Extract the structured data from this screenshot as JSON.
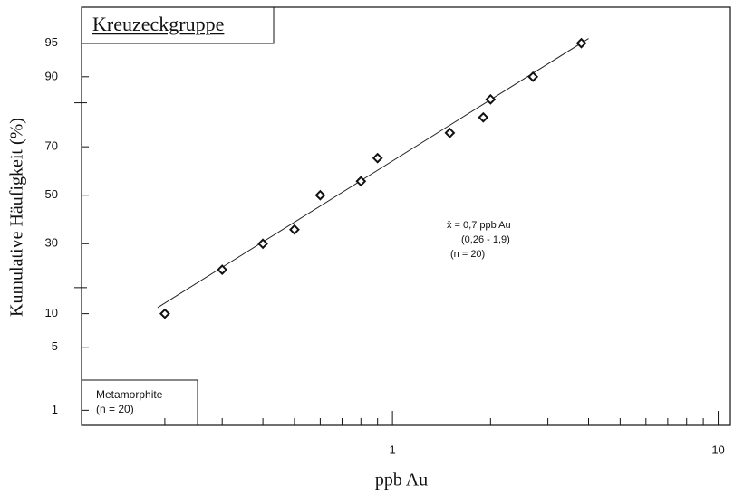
{
  "chart_data": {
    "type": "scatter",
    "title": "Kreuzeckgruppe",
    "x_label": "ppb Au",
    "y_label": "Kumulative Häufigkeit (%)",
    "x_scale": "log",
    "y_scale": "probability",
    "xlim": [
      0.111,
      10.9
    ],
    "ylim": [
      0.64,
      97.9
    ],
    "xticks": [
      1,
      10
    ],
    "minor_xticks": [
      0.2,
      0.3,
      0.4,
      0.5,
      0.6,
      0.7,
      0.8,
      0.9,
      2,
      3,
      4,
      5,
      6,
      7,
      8,
      9
    ],
    "yticks": [
      1,
      5,
      10,
      30,
      50,
      70,
      90,
      95
    ],
    "minor_yticks": [
      15.87,
      84.13
    ],
    "color": "#111111",
    "x": [
      0.2,
      0.3,
      0.4,
      0.5,
      0.6,
      0.8,
      0.9,
      1.5,
      1.9,
      2.0,
      2.7,
      3.8
    ],
    "values": [
      10,
      21,
      30,
      35.5,
      50,
      56,
      65.6,
      75,
      80,
      85,
      90,
      95
    ],
    "fit_line": {
      "x": [
        0.19,
        4.0
      ],
      "values": [
        11.2,
        95.5
      ]
    },
    "annotation": [
      "x̄ = 0,7 ppb Au",
      "(0,26 - 1,9)",
      "(n = 20)"
    ],
    "legend_text": [
      "Metamorphite",
      "(n = 20)"
    ]
  }
}
